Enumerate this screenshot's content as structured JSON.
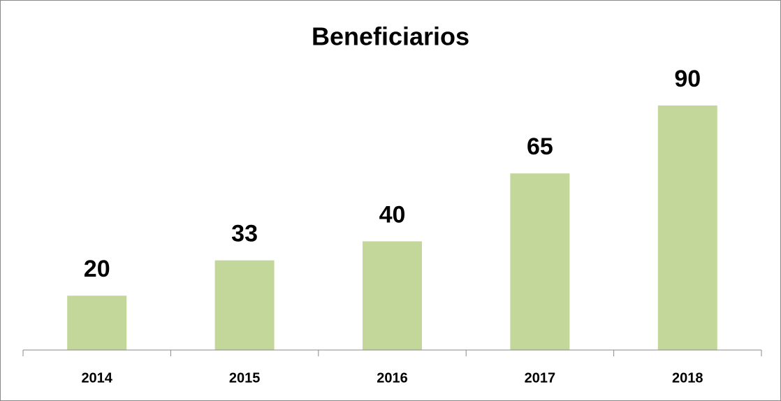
{
  "chart_data": {
    "type": "bar",
    "title": "Beneficiarios",
    "categories": [
      "2014",
      "2015",
      "2016",
      "2017",
      "2018"
    ],
    "values": [
      20,
      33,
      40,
      65,
      90
    ],
    "color": "#c4d79b"
  }
}
